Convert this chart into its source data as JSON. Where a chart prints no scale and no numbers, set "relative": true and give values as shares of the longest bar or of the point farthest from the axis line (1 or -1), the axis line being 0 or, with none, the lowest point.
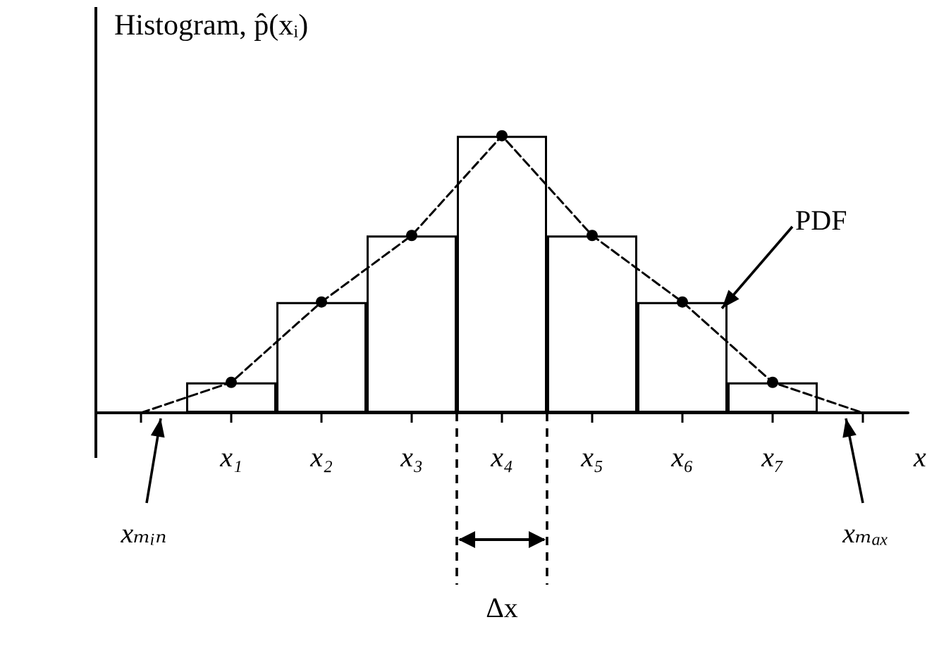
{
  "chart_data": {
    "type": "bar",
    "title": "Histogram, p̂(xᵢ)",
    "xlabel": "x",
    "relative": true,
    "tick_labels": "x",
    "legend": false,
    "categories": [
      null,
      "x₁",
      "x₂",
      "x₃",
      "x₄",
      "x₅",
      "x₆",
      "x₇",
      null
    ],
    "series": [
      {
        "color": "#000000",
        "values": [
          null,
          0.11,
          0.4,
          0.64,
          1,
          0.64,
          0.4,
          0.11,
          null
        ]
      },
      {
        "type": "line",
        "name": "PDF",
        "color": "#000000",
        "marker": "circle",
        "line_style": "dashed",
        "values": [
          0,
          0.11,
          0.4,
          0.64,
          1,
          0.64,
          0.4,
          0.11,
          0
        ]
      }
    ],
    "annotations": [
      "xₘᵢₙ",
      "xₘₐₓ",
      "Δx"
    ]
  }
}
